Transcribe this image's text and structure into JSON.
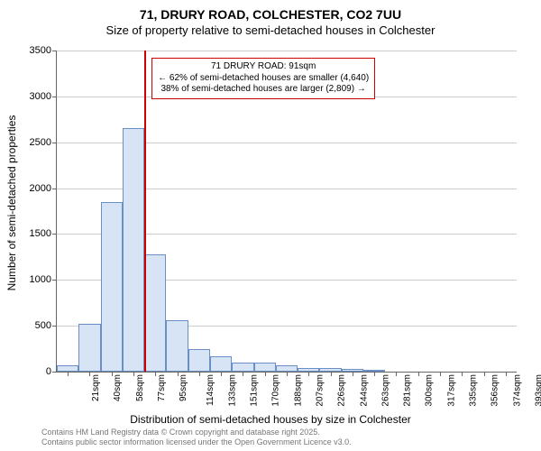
{
  "header": {
    "title": "71, DRURY ROAD, COLCHESTER, CO2 7UU",
    "subtitle": "Size of property relative to semi-detached houses in Colchester"
  },
  "chart": {
    "type": "histogram",
    "ylabel": "Number of semi-detached properties",
    "xlabel": "Distribution of semi-detached houses by size in Colchester",
    "ylim": [
      0,
      3500
    ],
    "ytick_step": 500,
    "yticks": [
      0,
      500,
      1000,
      1500,
      2000,
      2500,
      3000,
      3500
    ],
    "xticks": [
      "21sqm",
      "40sqm",
      "58sqm",
      "77sqm",
      "95sqm",
      "114sqm",
      "133sqm",
      "151sqm",
      "170sqm",
      "188sqm",
      "207sqm",
      "226sqm",
      "244sqm",
      "263sqm",
      "281sqm",
      "300sqm",
      "317sqm",
      "335sqm",
      "356sqm",
      "374sqm",
      "393sqm"
    ],
    "bars": [
      70,
      520,
      1850,
      2650,
      1280,
      560,
      250,
      170,
      100,
      100,
      70,
      40,
      40,
      30,
      20,
      0,
      0,
      0,
      0,
      0,
      0
    ],
    "bar_fill": "#d6e4f5",
    "bar_border": "#6a8fc4",
    "grid_color": "#cccccc",
    "axis_color": "#666666",
    "background_color": "#ffffff",
    "bar_width_ratio": 1.0,
    "marker": {
      "position_index": 4,
      "color": "#cc0000",
      "line_width": 2
    },
    "annotation": {
      "line1": "71 DRURY ROAD: 91sqm",
      "line2": "← 62% of semi-detached houses are smaller (4,640)",
      "line3": "38% of semi-detached houses are larger (2,809) →",
      "border_color": "#cc0000",
      "background": "#ffffff",
      "fontsize": 10
    },
    "title_fontsize": 14,
    "subtitle_fontsize": 13,
    "label_fontsize": 12,
    "tick_fontsize": 11
  },
  "footer": {
    "line1": "Contains HM Land Registry data © Crown copyright and database right 2025.",
    "line2": "Contains public sector information licensed under the Open Government Licence v3.0."
  }
}
